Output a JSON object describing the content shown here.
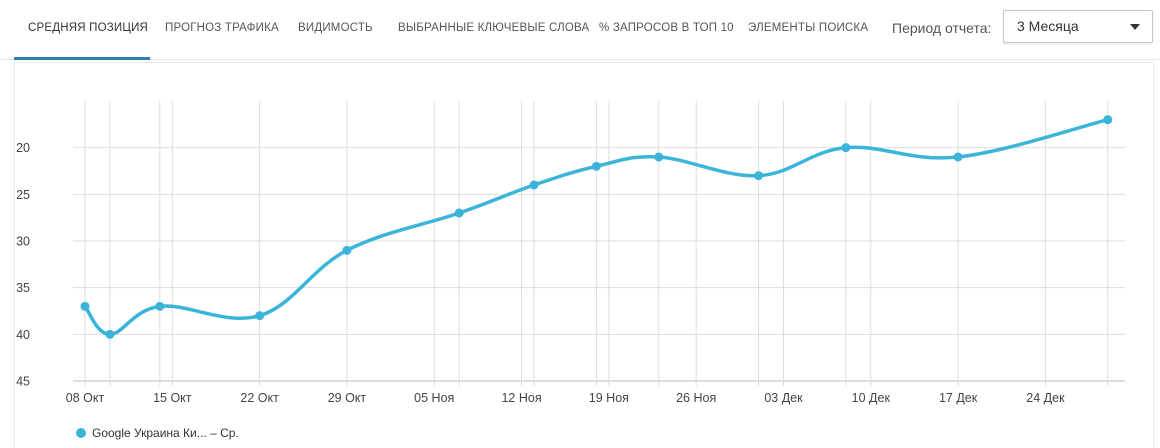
{
  "tabs": [
    {
      "label": "СРЕДНЯЯ ПОЗИЦИЯ",
      "active": true
    },
    {
      "label": "ПРОГНОЗ ТРАФИКА",
      "active": false
    },
    {
      "label": "ВИДИМОСТЬ",
      "active": false
    },
    {
      "label": "ВЫБРАННЫЕ КЛЮЧЕВЫЕ СЛОВА",
      "active": false
    },
    {
      "label": "% ЗАПРОСОВ В ТОП 10",
      "active": false
    },
    {
      "label": "ЭЛЕМЕНТЫ ПОИСКА",
      "active": false
    }
  ],
  "period": {
    "label": "Период отчета:",
    "value": "3 Месяца"
  },
  "colors": {
    "series": "#3ab4d8",
    "accent": "#2f80b7",
    "grid": "#dddddd"
  },
  "chart_data": {
    "type": "line",
    "x_ticks": [
      "08 Окт",
      "15 Окт",
      "22 Окт",
      "29 Окт",
      "05 Ноя",
      "12 Ноя",
      "19 Ноя",
      "26 Ноя",
      "03 Дек",
      "10 Дек",
      "17 Дек",
      "24 Дек"
    ],
    "y_ticks": [
      20,
      25,
      30,
      35,
      40,
      45
    ],
    "ylim": [
      45,
      15
    ],
    "y_inverted": true,
    "grid": true,
    "legend_position": "bottom-left",
    "series": [
      {
        "name": "Google Украина Ки... – Ср.",
        "x": [
          "2018-10-08",
          "2018-10-10",
          "2018-10-14",
          "2018-10-22",
          "2018-10-29",
          "2018-11-07",
          "2018-11-13",
          "2018-11-18",
          "2018-11-23",
          "2018-12-01",
          "2018-12-08",
          "2018-12-17",
          "2018-12-29"
        ],
        "values": [
          37,
          40,
          37,
          38,
          31,
          27,
          24,
          22,
          21,
          23,
          20,
          21,
          17
        ]
      }
    ]
  }
}
